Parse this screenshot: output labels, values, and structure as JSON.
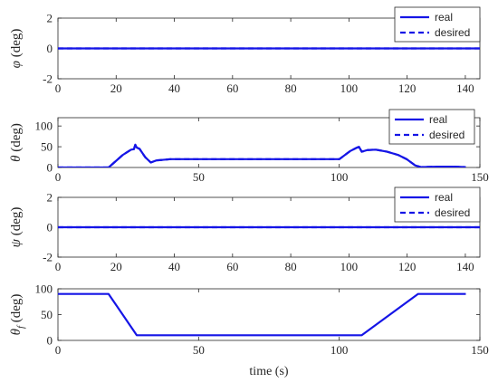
{
  "colors": {
    "line": "#1515e6",
    "axis": "#262626"
  },
  "xlabel": "time (s)",
  "chart_data": [
    {
      "type": "line",
      "ylabel": "φ (deg)",
      "xlim": [
        0,
        145
      ],
      "ylim": [
        -2,
        2
      ],
      "xticks": [
        0,
        20,
        40,
        60,
        80,
        100,
        120,
        140
      ],
      "yticks": [
        -2,
        0,
        2
      ],
      "legend": {
        "position": "top-right",
        "entries": [
          "real",
          "desired"
        ]
      },
      "series": [
        {
          "name": "real",
          "style": "solid",
          "x": [
            0,
            145
          ],
          "y": [
            0,
            0
          ]
        },
        {
          "name": "desired",
          "style": "dashed",
          "x": [
            0,
            145
          ],
          "y": [
            0,
            0
          ]
        }
      ]
    },
    {
      "type": "line",
      "ylabel": "θ (deg)",
      "xlim": [
        0,
        150
      ],
      "ylim": [
        0,
        120
      ],
      "xticks": [
        0,
        50,
        100,
        150
      ],
      "yticks": [
        0,
        50,
        100
      ],
      "legend": {
        "position": "top-right",
        "entries": [
          "real",
          "desired"
        ]
      },
      "series": [
        {
          "name": "real",
          "style": "solid",
          "x": [
            0,
            18,
            20,
            23,
            26,
            27,
            27.5,
            28,
            29,
            31,
            33,
            35,
            40,
            60,
            80,
            100,
            102,
            104,
            106,
            107,
            108,
            110,
            113,
            117,
            121,
            124,
            127,
            129,
            135,
            140,
            145
          ],
          "y": [
            0,
            0,
            12,
            30,
            43,
            44,
            55,
            48,
            45,
            25,
            12,
            17,
            20,
            20,
            20,
            20,
            30,
            40,
            47,
            50,
            38,
            42,
            43,
            38,
            30,
            20,
            5,
            1,
            2,
            2,
            1
          ]
        },
        {
          "name": "desired",
          "style": "dashed",
          "x": [
            0,
            18,
            20,
            23,
            26,
            27,
            27.5,
            28,
            29,
            31,
            33,
            35,
            40,
            60,
            80,
            100,
            102,
            104,
            106,
            107,
            108,
            110,
            113,
            117,
            121,
            124,
            127,
            129,
            135,
            140,
            145
          ],
          "y": [
            0,
            0,
            12,
            30,
            43,
            44,
            55,
            48,
            45,
            25,
            12,
            17,
            20,
            20,
            20,
            20,
            30,
            40,
            47,
            50,
            38,
            42,
            43,
            38,
            30,
            20,
            5,
            1,
            2,
            2,
            1
          ]
        }
      ]
    },
    {
      "type": "line",
      "ylabel": "ψ (deg)",
      "xlim": [
        0,
        145
      ],
      "ylim": [
        -2,
        2
      ],
      "xticks": [
        0,
        20,
        40,
        60,
        80,
        100,
        120,
        140
      ],
      "yticks": [
        -2,
        0,
        2
      ],
      "legend": {
        "position": "top-right",
        "entries": [
          "real",
          "desired"
        ]
      },
      "series": [
        {
          "name": "real",
          "style": "solid",
          "x": [
            0,
            145
          ],
          "y": [
            0,
            0
          ]
        },
        {
          "name": "desired",
          "style": "dashed",
          "x": [
            0,
            145
          ],
          "y": [
            0,
            0
          ]
        }
      ]
    },
    {
      "type": "line",
      "ylabel": "θ",
      "ylabel_subscript": "f",
      "ylabel_unit": " (deg)",
      "xlim": [
        0,
        150
      ],
      "ylim": [
        0,
        100
      ],
      "xticks": [
        0,
        50,
        100,
        150
      ],
      "yticks": [
        0,
        50,
        100
      ],
      "series": [
        {
          "name": "",
          "style": "solid",
          "x": [
            0,
            18,
            28,
            108,
            128,
            145
          ],
          "y": [
            90,
            90,
            10,
            10,
            90,
            90
          ]
        }
      ]
    }
  ]
}
